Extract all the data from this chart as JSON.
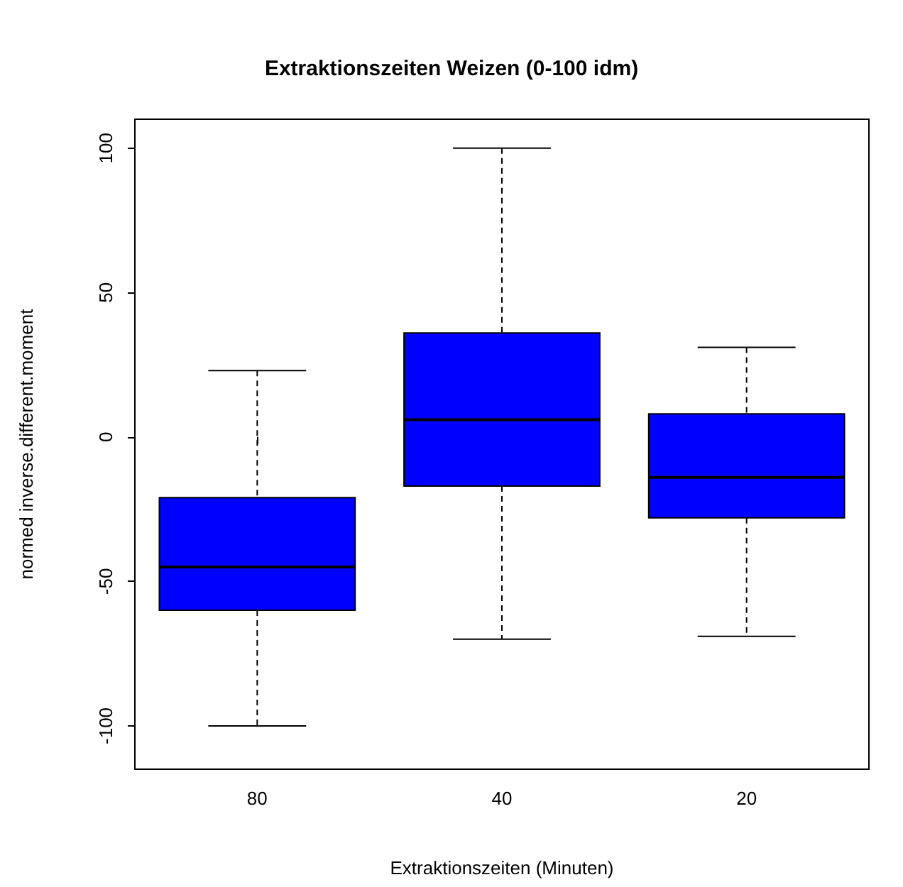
{
  "chart_data": {
    "type": "box",
    "title": "Extraktionszeiten Weizen (0-100 idm)",
    "xlabel": "Extraktionszeiten (Minuten)",
    "ylabel": "normed inverse.different.moment",
    "categories": [
      "80",
      "40",
      "20"
    ],
    "color": "#0000ff",
    "boxes": [
      {
        "low": -100,
        "q1": -60,
        "median": -45,
        "q3": -21,
        "high": 23
      },
      {
        "low": -70,
        "q1": -17,
        "median": 6,
        "q3": 36,
        "high": 100
      },
      {
        "low": -69,
        "q1": -28,
        "median": -14,
        "q3": 8,
        "high": 31
      }
    ],
    "ylim": [
      -115,
      110
    ],
    "yticks": [
      -100,
      -50,
      0,
      50,
      100
    ],
    "grid": false
  }
}
